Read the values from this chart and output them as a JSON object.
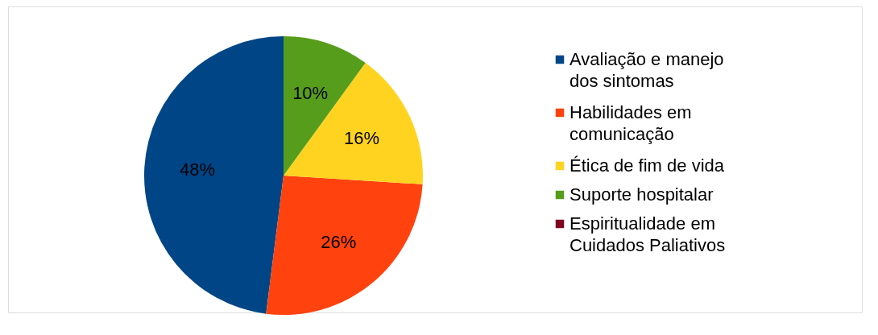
{
  "chart_data": {
    "type": "pie",
    "categories": [
      "Avaliação e manejo dos sintomas",
      "Habilidades em comunicação",
      "Ética de fim de vida",
      "Suporte hospitalar",
      "Espiritualidade em Cuidados Paliativos"
    ],
    "values": [
      48,
      26,
      16,
      10,
      0
    ],
    "colors": [
      "#004586",
      "#ff420e",
      "#ffd320",
      "#579d1c",
      "#7e0021"
    ],
    "value_labels": [
      "48%",
      "26%",
      "16%",
      "10%",
      null
    ],
    "legend": "right"
  }
}
